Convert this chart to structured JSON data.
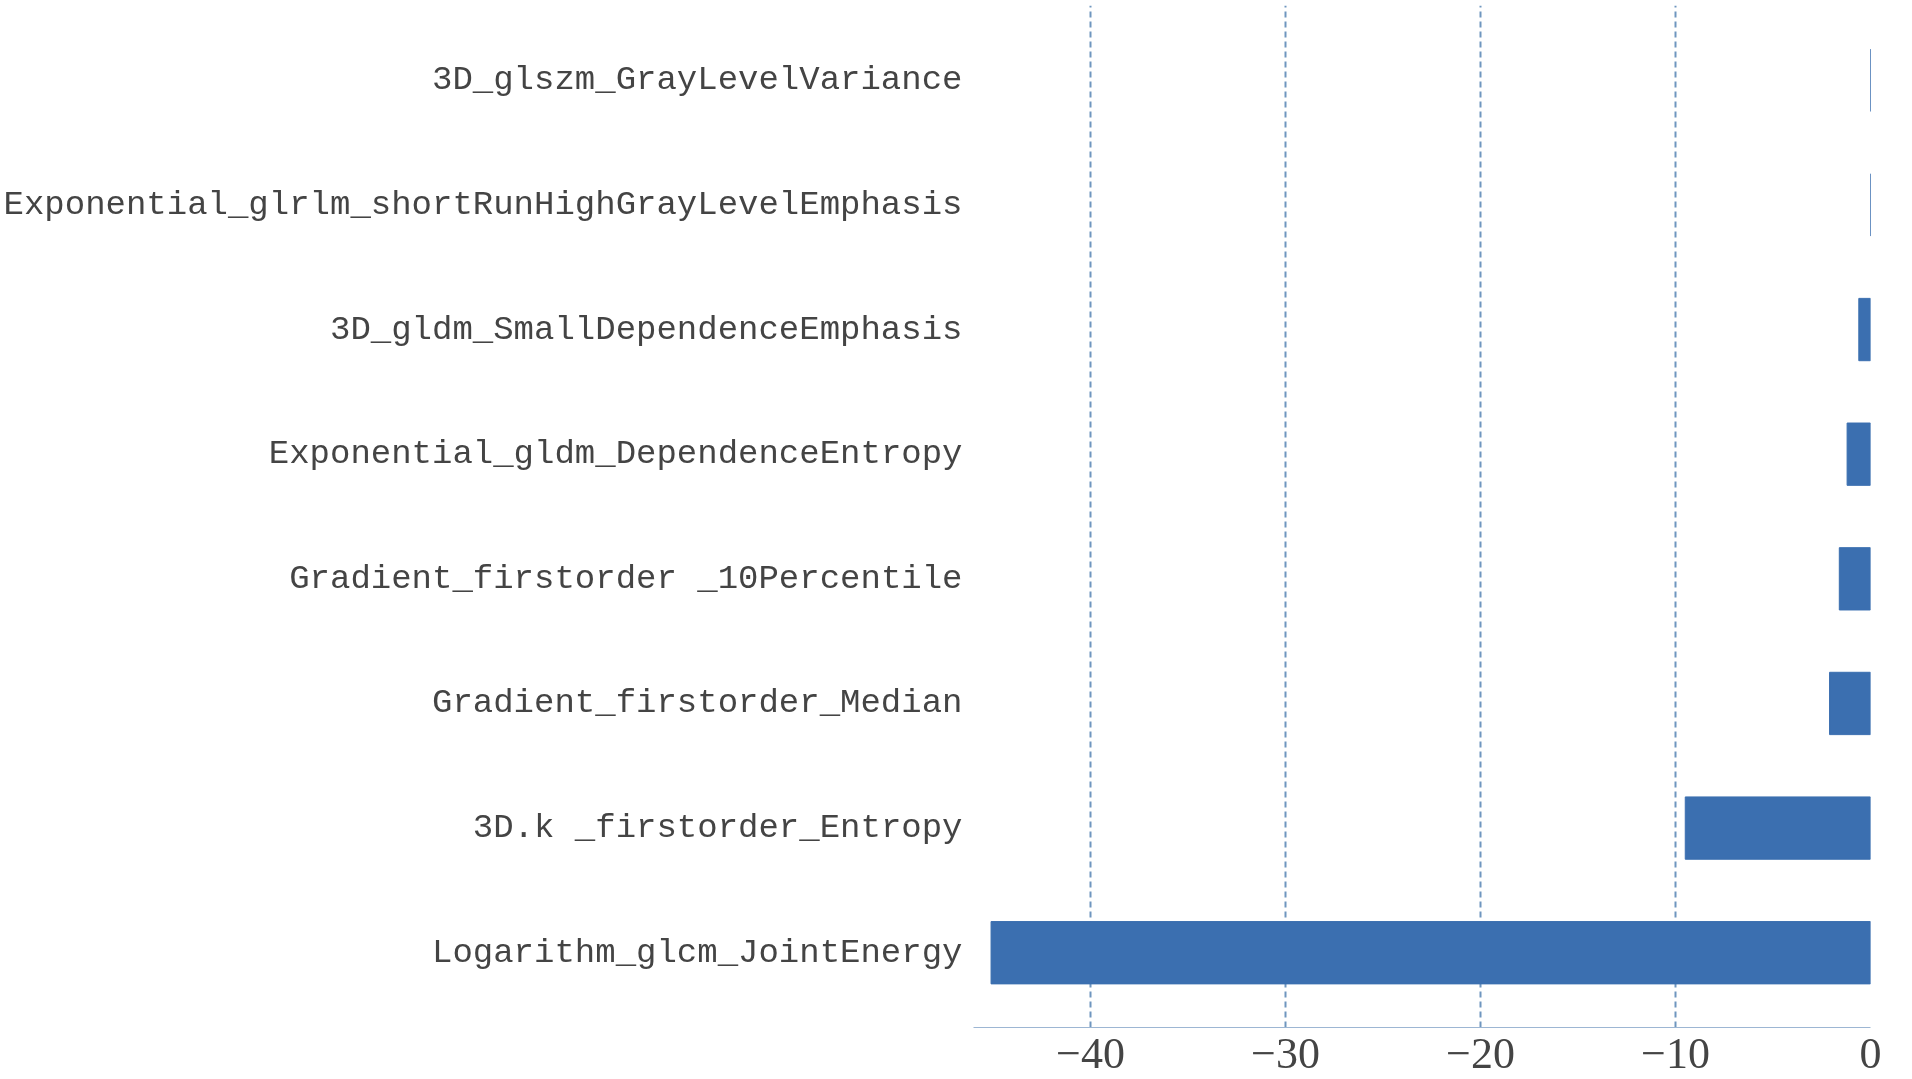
{
  "chart_data": {
    "type": "bar",
    "orientation": "horizontal",
    "categories": [
      "3D_glszm_GrayLevelVariance",
      "Exponential_glrlm_shortRunHighGrayLevelEmphasis",
      "3D_gldm_SmallDependenceEmphasis",
      "Exponential_gldm_DependenceEntropy",
      "Gradient_firstorder _10Percentile",
      "Gradient_firstorder_Median",
      "3D.k _firstorder_Entropy",
      "Logarithm_glcm_JointEnergy"
    ],
    "values": [
      0,
      0,
      -0.6,
      -1.2,
      -1.6,
      -2.1,
      -9.5,
      -45.1
    ],
    "color": "#3b6fb0",
    "xlim": [
      -46,
      0
    ],
    "xticks": [
      {
        "value": -40,
        "label": "−40"
      },
      {
        "value": -30,
        "label": "−30"
      },
      {
        "value": -20,
        "label": "−20"
      },
      {
        "value": -10,
        "label": "−10"
      },
      0
    ],
    "grid": "x"
  }
}
